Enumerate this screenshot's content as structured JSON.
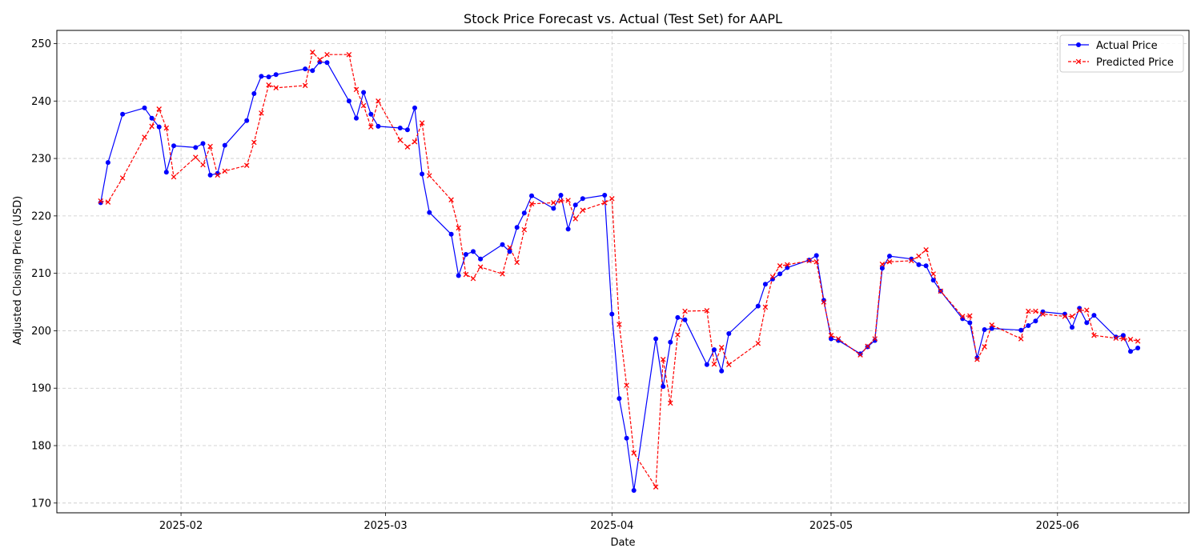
{
  "chart_data": {
    "type": "line",
    "title": "Stock Price Forecast vs. Actual (Test Set) for AAPL",
    "xlabel": "Date",
    "ylabel": "Adjusted Closing Price (USD)",
    "xlim": [
      "2025-01-15",
      "2025-06-19"
    ],
    "ylim": [
      168.3,
      252.3
    ],
    "y_ticks": [
      170,
      180,
      190,
      200,
      210,
      220,
      230,
      240,
      250
    ],
    "x_ticks": [
      {
        "date": "2025-02-01",
        "label": "2025-02"
      },
      {
        "date": "2025-03-01",
        "label": "2025-03"
      },
      {
        "date": "2025-04-01",
        "label": "2025-04"
      },
      {
        "date": "2025-05-01",
        "label": "2025-05"
      },
      {
        "date": "2025-06-01",
        "label": "2025-06"
      }
    ],
    "grid": true,
    "legend_position": "top-right",
    "x": [
      "2025-01-21",
      "2025-01-22",
      "2025-01-24",
      "2025-01-27",
      "2025-01-28",
      "2025-01-29",
      "2025-01-30",
      "2025-01-31",
      "2025-02-03",
      "2025-02-04",
      "2025-02-05",
      "2025-02-06",
      "2025-02-07",
      "2025-02-10",
      "2025-02-11",
      "2025-02-12",
      "2025-02-13",
      "2025-02-14",
      "2025-02-18",
      "2025-02-19",
      "2025-02-20",
      "2025-02-21",
      "2025-02-24",
      "2025-02-25",
      "2025-02-26",
      "2025-02-27",
      "2025-02-28",
      "2025-03-03",
      "2025-03-04",
      "2025-03-05",
      "2025-03-06",
      "2025-03-07",
      "2025-03-10",
      "2025-03-11",
      "2025-03-12",
      "2025-03-13",
      "2025-03-14",
      "2025-03-17",
      "2025-03-18",
      "2025-03-19",
      "2025-03-20",
      "2025-03-21",
      "2025-03-24",
      "2025-03-25",
      "2025-03-26",
      "2025-03-27",
      "2025-03-28",
      "2025-03-31",
      "2025-04-01",
      "2025-04-02",
      "2025-04-03",
      "2025-04-04",
      "2025-04-07",
      "2025-04-08",
      "2025-04-09",
      "2025-04-10",
      "2025-04-11",
      "2025-04-14",
      "2025-04-15",
      "2025-04-16",
      "2025-04-17",
      "2025-04-21",
      "2025-04-22",
      "2025-04-23",
      "2025-04-24",
      "2025-04-25",
      "2025-04-28",
      "2025-04-29",
      "2025-04-30",
      "2025-05-01",
      "2025-05-02",
      "2025-05-05",
      "2025-05-06",
      "2025-05-07",
      "2025-05-08",
      "2025-05-09",
      "2025-05-12",
      "2025-05-13",
      "2025-05-14",
      "2025-05-15",
      "2025-05-16",
      "2025-05-19",
      "2025-05-20",
      "2025-05-21",
      "2025-05-22",
      "2025-05-23",
      "2025-05-27",
      "2025-05-28",
      "2025-05-29",
      "2025-05-30",
      "2025-06-02",
      "2025-06-03",
      "2025-06-04",
      "2025-06-05",
      "2025-06-06",
      "2025-06-09",
      "2025-06-10",
      "2025-06-11",
      "2025-06-12"
    ],
    "series": [
      {
        "name": "Actual Price",
        "color": "#0000ff",
        "style": "solid",
        "marker": "circle",
        "values": [
          222.3,
          229.3,
          237.7,
          238.8,
          237.0,
          235.5,
          227.6,
          232.2,
          231.9,
          232.6,
          227.1,
          227.4,
          232.3,
          236.6,
          241.3,
          244.3,
          244.2,
          244.6,
          245.6,
          245.3,
          246.8,
          246.7,
          240.0,
          237.0,
          241.5,
          237.7,
          235.6,
          235.3,
          235.0,
          238.8,
          227.3,
          220.6,
          216.8,
          209.6,
          213.3,
          213.8,
          212.5,
          215.0,
          213.8,
          218.0,
          220.5,
          223.5,
          221.3,
          223.6,
          217.7,
          221.9,
          223.0,
          223.6,
          202.9,
          188.2,
          181.3,
          172.2,
          198.6,
          190.3,
          198.0,
          202.3,
          201.9,
          194.1,
          196.7,
          193.0,
          199.5,
          204.3,
          208.1,
          209.0,
          209.9,
          211.0,
          212.3,
          213.1,
          205.3,
          198.6,
          198.3,
          196.0,
          197.2,
          198.3,
          210.9,
          213.0,
          212.5,
          211.5,
          211.3,
          208.8,
          206.9,
          202.1,
          201.4,
          195.3,
          200.2,
          200.4,
          200.1,
          200.9,
          201.7,
          203.3,
          202.9,
          200.6,
          203.9,
          201.4,
          202.7,
          198.9,
          199.2,
          196.4,
          197.0
        ]
      },
      {
        "name": "Predicted Price",
        "color": "#ff0000",
        "style": "dashed",
        "marker": "x",
        "values": [
          222.6,
          222.4,
          226.6,
          233.7,
          235.6,
          238.6,
          235.3,
          226.8,
          230.2,
          228.9,
          232.1,
          227.1,
          227.8,
          228.8,
          232.8,
          237.9,
          242.8,
          242.3,
          242.7,
          248.5,
          247.2,
          248.1,
          248.1,
          242.0,
          239.2,
          235.5,
          240.0,
          233.2,
          232.0,
          232.9,
          236.2,
          227.0,
          222.8,
          217.9,
          209.8,
          209.1,
          211.1,
          209.9,
          214.5,
          211.9,
          217.6,
          222.1,
          222.3,
          222.6,
          222.7,
          219.5,
          221.0,
          222.3,
          223.0,
          201.1,
          190.5,
          178.7,
          172.8,
          195.0,
          187.4,
          199.3,
          203.4,
          203.5,
          194.2,
          197.1,
          194.1,
          197.8,
          204.1,
          209.4,
          211.3,
          211.5,
          212.2,
          212.0,
          205.0,
          199.2,
          198.6,
          195.8,
          197.3,
          198.6,
          211.6,
          212.0,
          212.2,
          213.0,
          214.1,
          209.9,
          206.9,
          202.5,
          202.6,
          195.0,
          197.2,
          201.0,
          198.6,
          203.4,
          203.4,
          202.9,
          202.5,
          202.5,
          203.5,
          203.6,
          199.2,
          198.7,
          198.6,
          198.5,
          198.2
        ]
      }
    ]
  }
}
